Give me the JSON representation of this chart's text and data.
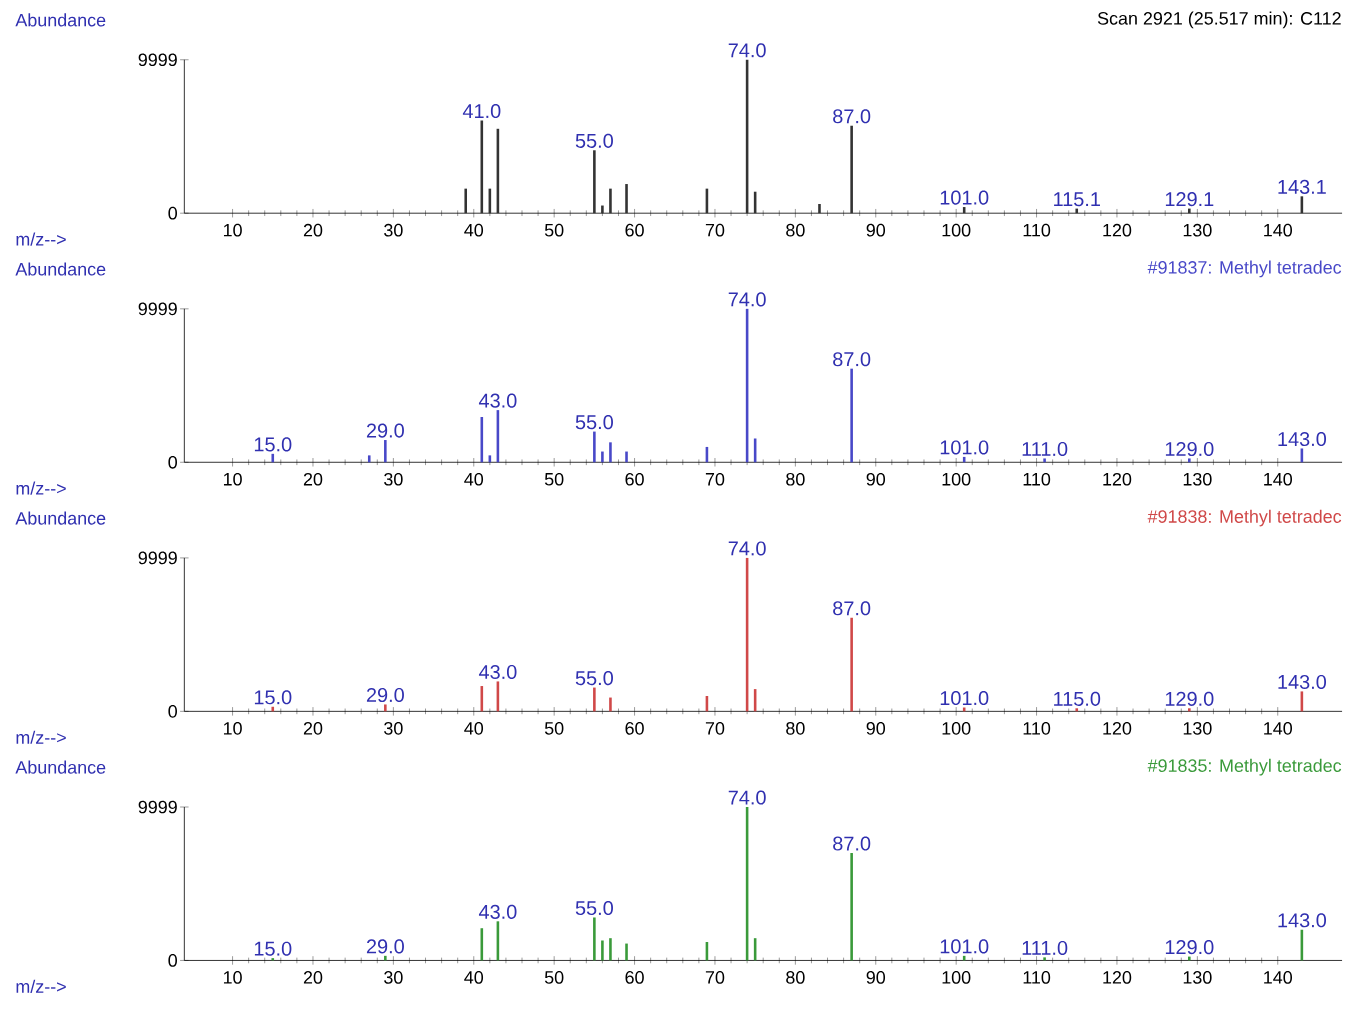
{
  "chart_data": [
    {
      "type": "bar",
      "title": "Scan 2921 (25.517 min): C112",
      "xlabel": "m/z-->",
      "ylabel": "Abundance",
      "color": "#333333",
      "x": [
        39,
        41,
        42,
        43,
        55,
        56,
        57,
        59,
        69,
        74,
        75,
        83,
        87,
        101,
        115,
        129,
        143
      ],
      "values": [
        1600,
        6040,
        1600,
        5500,
        4100,
        500,
        1600,
        1900,
        1600,
        9999,
        1400,
        600,
        5700,
        400,
        300,
        300,
        1100
      ],
      "xlim": [
        4,
        148
      ],
      "ylim": [
        0,
        9999
      ],
      "xticks": [
        10,
        20,
        30,
        40,
        50,
        60,
        70,
        80,
        90,
        100,
        110,
        120,
        130,
        140
      ],
      "yticks": [
        0,
        9999
      ],
      "annotations": [
        {
          "text": "41.0",
          "x": 41,
          "y": 6040
        },
        {
          "text": "55.0",
          "x": 55,
          "y": 4100
        },
        {
          "text": "74.0",
          "x": 74,
          "y": 9999
        },
        {
          "text": "87.0",
          "x": 87,
          "y": 5700
        },
        {
          "text": "101.0",
          "x": 101,
          "y": 400
        },
        {
          "text": "115.1",
          "x": 115,
          "y": 300
        },
        {
          "text": "129.1",
          "x": 129,
          "y": 300
        },
        {
          "text": "143.1",
          "x": 143,
          "y": 1100
        }
      ]
    },
    {
      "type": "bar",
      "title": "#91837: Methyl tetradec",
      "xlabel": "m/z-->",
      "ylabel": "Abundance",
      "color": "#4848c8",
      "x": [
        15,
        27,
        29,
        41,
        42,
        43,
        55,
        56,
        57,
        59,
        69,
        74,
        75,
        87,
        101,
        111,
        129,
        143
      ],
      "values": [
        550,
        450,
        1450,
        2950,
        450,
        3400,
        2000,
        700,
        1300,
        700,
        1000,
        9999,
        1550,
        6100,
        350,
        250,
        250,
        900
      ],
      "xlim": [
        4,
        148
      ],
      "ylim": [
        0,
        9999
      ],
      "xticks": [
        10,
        20,
        30,
        40,
        50,
        60,
        70,
        80,
        90,
        100,
        110,
        120,
        130,
        140
      ],
      "yticks": [
        0,
        9999
      ],
      "annotations": [
        {
          "text": "15.0",
          "x": 15,
          "y": 550
        },
        {
          "text": "29.0",
          "x": 29,
          "y": 1450
        },
        {
          "text": "43.0",
          "x": 43,
          "y": 3400
        },
        {
          "text": "55.0",
          "x": 55,
          "y": 2000
        },
        {
          "text": "74.0",
          "x": 74,
          "y": 9999
        },
        {
          "text": "87.0",
          "x": 87,
          "y": 6100
        },
        {
          "text": "101.0",
          "x": 101,
          "y": 350
        },
        {
          "text": "111.0",
          "x": 111,
          "y": 250
        },
        {
          "text": "129.0",
          "x": 129,
          "y": 250
        },
        {
          "text": "143.0",
          "x": 143,
          "y": 900
        }
      ]
    },
    {
      "type": "bar",
      "title": "#91838: Methyl tetradec",
      "xlabel": "m/z-->",
      "ylabel": "Abundance",
      "color": "#d04848",
      "x": [
        15,
        29,
        41,
        43,
        55,
        57,
        69,
        74,
        75,
        87,
        101,
        115,
        129,
        143
      ],
      "values": [
        300,
        450,
        1650,
        1950,
        1550,
        900,
        1000,
        9999,
        1450,
        6100,
        250,
        200,
        200,
        1300
      ],
      "xlim": [
        4,
        148
      ],
      "ylim": [
        0,
        9999
      ],
      "xticks": [
        10,
        20,
        30,
        40,
        50,
        60,
        70,
        80,
        90,
        100,
        110,
        120,
        130,
        140
      ],
      "yticks": [
        0,
        9999
      ],
      "annotations": [
        {
          "text": "15.0",
          "x": 15,
          "y": 300
        },
        {
          "text": "29.0",
          "x": 29,
          "y": 450
        },
        {
          "text": "43.0",
          "x": 43,
          "y": 1950
        },
        {
          "text": "55.0",
          "x": 55,
          "y": 1550
        },
        {
          "text": "74.0",
          "x": 74,
          "y": 9999
        },
        {
          "text": "87.0",
          "x": 87,
          "y": 6100
        },
        {
          "text": "101.0",
          "x": 101,
          "y": 250
        },
        {
          "text": "115.0",
          "x": 115,
          "y": 200
        },
        {
          "text": "129.0",
          "x": 129,
          "y": 200
        },
        {
          "text": "143.0",
          "x": 143,
          "y": 1300
        }
      ]
    },
    {
      "type": "bar",
      "title": "#91835: Methyl tetradec",
      "xlabel": "m/z-->",
      "ylabel": "Abundance",
      "color": "#3a9a3a",
      "x": [
        15,
        29,
        41,
        43,
        55,
        56,
        57,
        59,
        69,
        74,
        75,
        87,
        101,
        111,
        129,
        143
      ],
      "values": [
        150,
        300,
        2100,
        2550,
        2800,
        1300,
        1450,
        1100,
        1200,
        9999,
        1450,
        7000,
        300,
        200,
        250,
        2000
      ],
      "xlim": [
        4,
        148
      ],
      "ylim": [
        0,
        9999
      ],
      "xticks": [
        10,
        20,
        30,
        40,
        50,
        60,
        70,
        80,
        90,
        100,
        110,
        120,
        130,
        140
      ],
      "yticks": [
        0,
        9999
      ],
      "annotations": [
        {
          "text": "15.0",
          "x": 15,
          "y": 150
        },
        {
          "text": "29.0",
          "x": 29,
          "y": 300
        },
        {
          "text": "43.0",
          "x": 43,
          "y": 2550
        },
        {
          "text": "55.0",
          "x": 55,
          "y": 2800
        },
        {
          "text": "74.0",
          "x": 74,
          "y": 9999
        },
        {
          "text": "87.0",
          "x": 87,
          "y": 7000
        },
        {
          "text": "101.0",
          "x": 101,
          "y": 300
        },
        {
          "text": "111.0",
          "x": 111,
          "y": 200
        },
        {
          "text": "129.0",
          "x": 129,
          "y": 250
        },
        {
          "text": "143.0",
          "x": 143,
          "y": 2000
        }
      ]
    }
  ]
}
